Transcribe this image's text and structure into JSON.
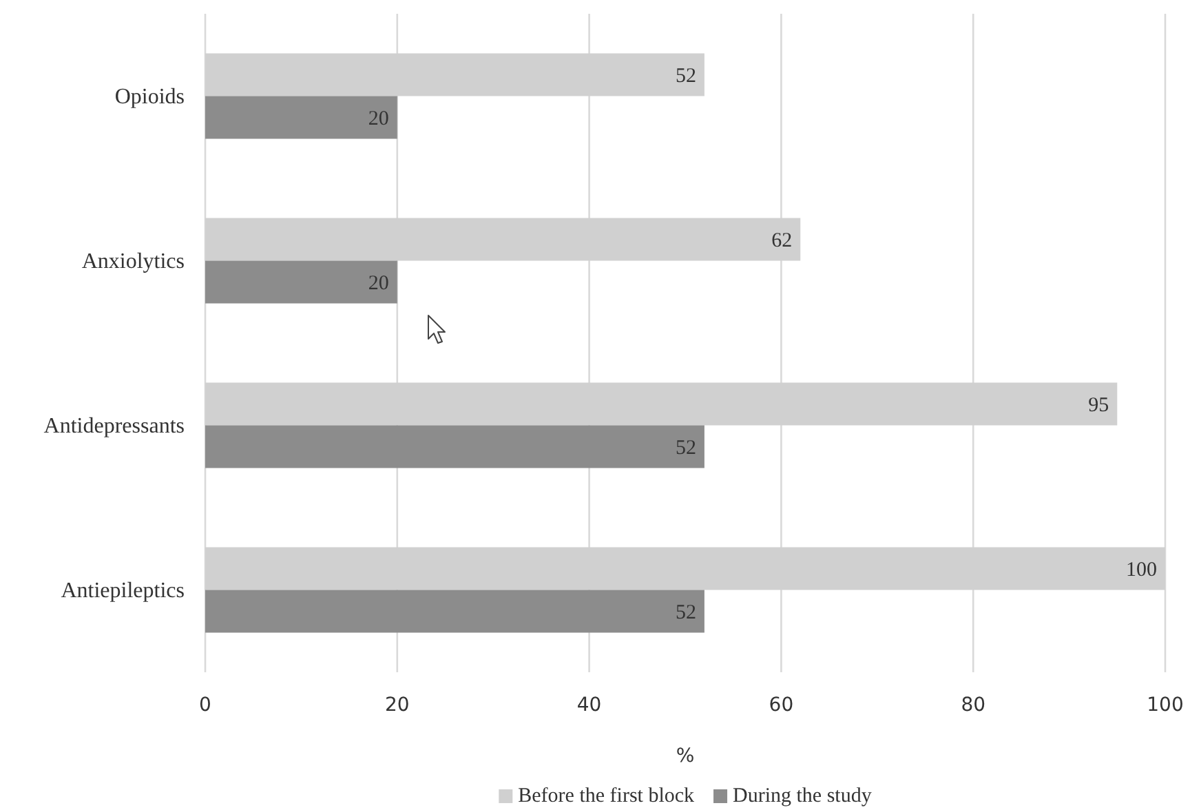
{
  "chart_data": {
    "type": "bar",
    "orientation": "horizontal",
    "xlabel": "%",
    "categories": [
      "Opioids",
      "Anxiolytics",
      "Antidepressants",
      "Antiepileptics"
    ],
    "series": [
      {
        "name": "Before the first block",
        "color": "#d0d0d0",
        "values": [
          52,
          62,
          95,
          100
        ]
      },
      {
        "name": "During the study",
        "color": "#8c8c8c",
        "values": [
          20,
          20,
          52,
          52
        ]
      }
    ],
    "xlim": [
      0,
      100
    ],
    "xticks": [
      0,
      20,
      40,
      60,
      80,
      100
    ],
    "grid": "x",
    "legend": "bottom",
    "data_labels": true
  }
}
